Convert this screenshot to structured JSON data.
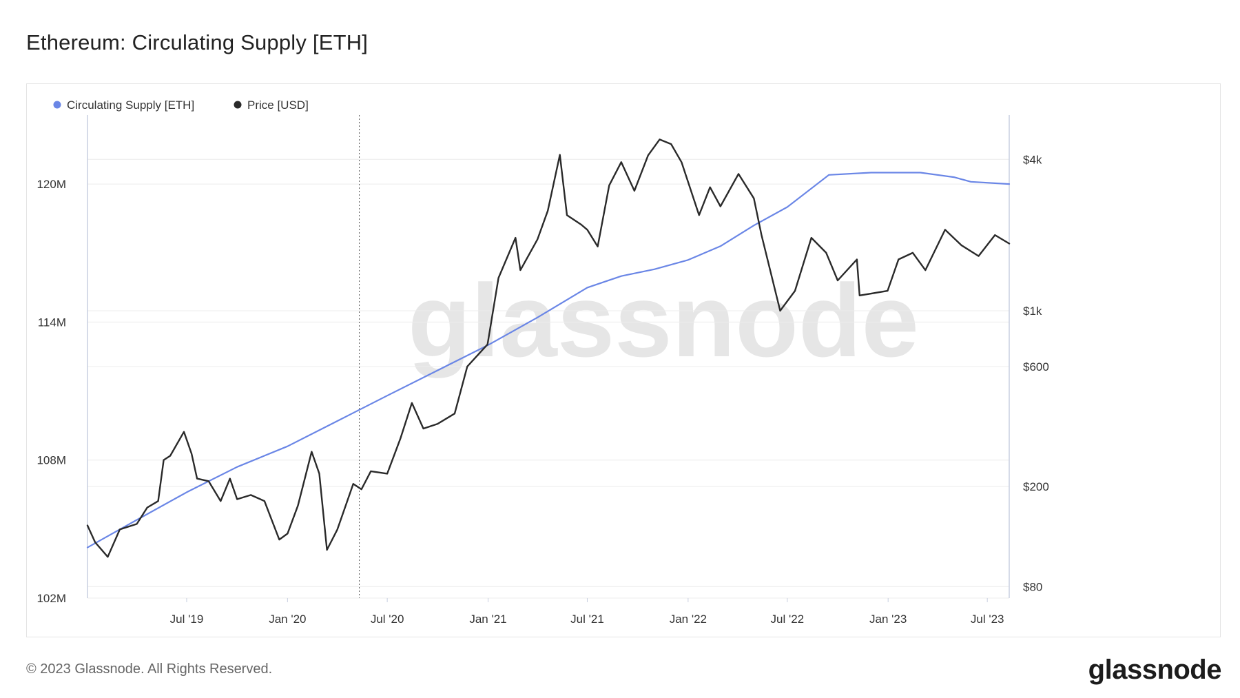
{
  "page": {
    "title": "Ethereum: Circulating Supply [ETH]",
    "copyright": "© 2023 Glassnode. All Rights Reserved.",
    "logo": "glassnode",
    "watermark": "glassnode"
  },
  "colors": {
    "supply": "#6a86e6",
    "price": "#2a2a2a",
    "grid": "#ececec",
    "axis": "#c8cfe0",
    "text": "#333333"
  },
  "chart_data": {
    "type": "line",
    "title": "Ethereum: Circulating Supply [ETH]",
    "legend_position": "top-left",
    "grid": true,
    "x_range": [
      "2019-01-01",
      "2023-08-10"
    ],
    "x_ticks": [
      {
        "date": "2019-07-01",
        "label": "Jul '19"
      },
      {
        "date": "2020-01-01",
        "label": "Jan '20"
      },
      {
        "date": "2020-07-01",
        "label": "Jul '20"
      },
      {
        "date": "2021-01-01",
        "label": "Jan '21"
      },
      {
        "date": "2021-07-01",
        "label": "Jul '21"
      },
      {
        "date": "2022-01-01",
        "label": "Jan '22"
      },
      {
        "date": "2022-07-01",
        "label": "Jul '22"
      },
      {
        "date": "2023-01-01",
        "label": "Jan '23"
      },
      {
        "date": "2023-07-01",
        "label": "Jul '23"
      }
    ],
    "y_left": {
      "unit": "ETH",
      "range": [
        102000000,
        123000000
      ],
      "ticks": [
        {
          "value": 102000000,
          "label": "102M"
        },
        {
          "value": 108000000,
          "label": "108M"
        },
        {
          "value": 114000000,
          "label": "114M"
        },
        {
          "value": 120000000,
          "label": "120M"
        }
      ]
    },
    "y_right": {
      "unit": "USD",
      "scale": "log",
      "range": [
        72,
        6000
      ],
      "ticks": [
        {
          "value": 80,
          "label": "$80"
        },
        {
          "value": 200,
          "label": "$200"
        },
        {
          "value": 600,
          "label": "$600"
        },
        {
          "value": 1000,
          "label": "$1k"
        },
        {
          "value": 4000,
          "label": "$4k"
        }
      ]
    },
    "marker_date": "2020-05-11",
    "series": [
      {
        "name": "Circulating Supply [ETH]",
        "axis": "left",
        "points": [
          [
            "2019-01-01",
            104200000
          ],
          [
            "2019-04-01",
            105400000
          ],
          [
            "2019-07-01",
            106600000
          ],
          [
            "2019-10-01",
            107700000
          ],
          [
            "2020-01-01",
            108600000
          ],
          [
            "2020-04-01",
            109700000
          ],
          [
            "2020-07-01",
            110800000
          ],
          [
            "2020-10-01",
            111900000
          ],
          [
            "2021-01-01",
            113000000
          ],
          [
            "2021-04-01",
            114200000
          ],
          [
            "2021-07-01",
            115500000
          ],
          [
            "2021-09-01",
            116000000
          ],
          [
            "2021-11-01",
            116300000
          ],
          [
            "2022-01-01",
            116700000
          ],
          [
            "2022-03-01",
            117300000
          ],
          [
            "2022-05-01",
            118200000
          ],
          [
            "2022-07-01",
            119000000
          ],
          [
            "2022-09-15",
            120400000
          ],
          [
            "2022-12-01",
            120500000
          ],
          [
            "2023-03-01",
            120500000
          ],
          [
            "2023-05-01",
            120300000
          ],
          [
            "2023-06-01",
            120100000
          ],
          [
            "2023-08-10",
            120000000
          ]
        ]
      },
      {
        "name": "Price [USD]",
        "axis": "right",
        "points": [
          [
            "2019-01-01",
            140
          ],
          [
            "2019-01-15",
            120
          ],
          [
            "2019-02-07",
            105
          ],
          [
            "2019-03-01",
            135
          ],
          [
            "2019-04-01",
            142
          ],
          [
            "2019-04-20",
            165
          ],
          [
            "2019-05-10",
            175
          ],
          [
            "2019-05-20",
            255
          ],
          [
            "2019-06-01",
            265
          ],
          [
            "2019-06-26",
            330
          ],
          [
            "2019-07-10",
            270
          ],
          [
            "2019-07-20",
            215
          ],
          [
            "2019-08-10",
            210
          ],
          [
            "2019-09-01",
            175
          ],
          [
            "2019-09-18",
            215
          ],
          [
            "2019-10-01",
            178
          ],
          [
            "2019-10-26",
            185
          ],
          [
            "2019-11-20",
            175
          ],
          [
            "2019-12-17",
            123
          ],
          [
            "2020-01-01",
            130
          ],
          [
            "2020-01-20",
            168
          ],
          [
            "2020-02-14",
            275
          ],
          [
            "2020-02-28",
            225
          ],
          [
            "2020-03-13",
            112
          ],
          [
            "2020-04-01",
            135
          ],
          [
            "2020-04-30",
            205
          ],
          [
            "2020-05-15",
            195
          ],
          [
            "2020-06-01",
            230
          ],
          [
            "2020-07-01",
            225
          ],
          [
            "2020-07-25",
            310
          ],
          [
            "2020-08-15",
            430
          ],
          [
            "2020-09-05",
            340
          ],
          [
            "2020-10-01",
            355
          ],
          [
            "2020-11-01",
            390
          ],
          [
            "2020-11-24",
            600
          ],
          [
            "2020-12-31",
            735
          ],
          [
            "2021-01-20",
            1350
          ],
          [
            "2021-02-20",
            1950
          ],
          [
            "2021-03-01",
            1450
          ],
          [
            "2021-04-01",
            1920
          ],
          [
            "2021-04-20",
            2500
          ],
          [
            "2021-05-12",
            4170
          ],
          [
            "2021-05-25",
            2400
          ],
          [
            "2021-06-20",
            2200
          ],
          [
            "2021-07-01",
            2100
          ],
          [
            "2021-07-20",
            1800
          ],
          [
            "2021-08-10",
            3150
          ],
          [
            "2021-09-01",
            3900
          ],
          [
            "2021-09-25",
            3000
          ],
          [
            "2021-10-20",
            4150
          ],
          [
            "2021-11-10",
            4800
          ],
          [
            "2021-12-01",
            4600
          ],
          [
            "2021-12-20",
            3900
          ],
          [
            "2022-01-21",
            2400
          ],
          [
            "2022-02-10",
            3100
          ],
          [
            "2022-03-01",
            2600
          ],
          [
            "2022-04-03",
            3500
          ],
          [
            "2022-05-01",
            2800
          ],
          [
            "2022-05-15",
            2000
          ],
          [
            "2022-06-18",
            1000
          ],
          [
            "2022-07-15",
            1200
          ],
          [
            "2022-08-14",
            1950
          ],
          [
            "2022-09-10",
            1700
          ],
          [
            "2022-10-01",
            1320
          ],
          [
            "2022-11-05",
            1600
          ],
          [
            "2022-11-10",
            1150
          ],
          [
            "2022-12-31",
            1200
          ],
          [
            "2023-01-20",
            1600
          ],
          [
            "2023-02-15",
            1700
          ],
          [
            "2023-03-10",
            1450
          ],
          [
            "2023-04-15",
            2100
          ],
          [
            "2023-05-15",
            1820
          ],
          [
            "2023-06-15",
            1650
          ],
          [
            "2023-07-15",
            2000
          ],
          [
            "2023-08-10",
            1850
          ]
        ]
      }
    ]
  }
}
